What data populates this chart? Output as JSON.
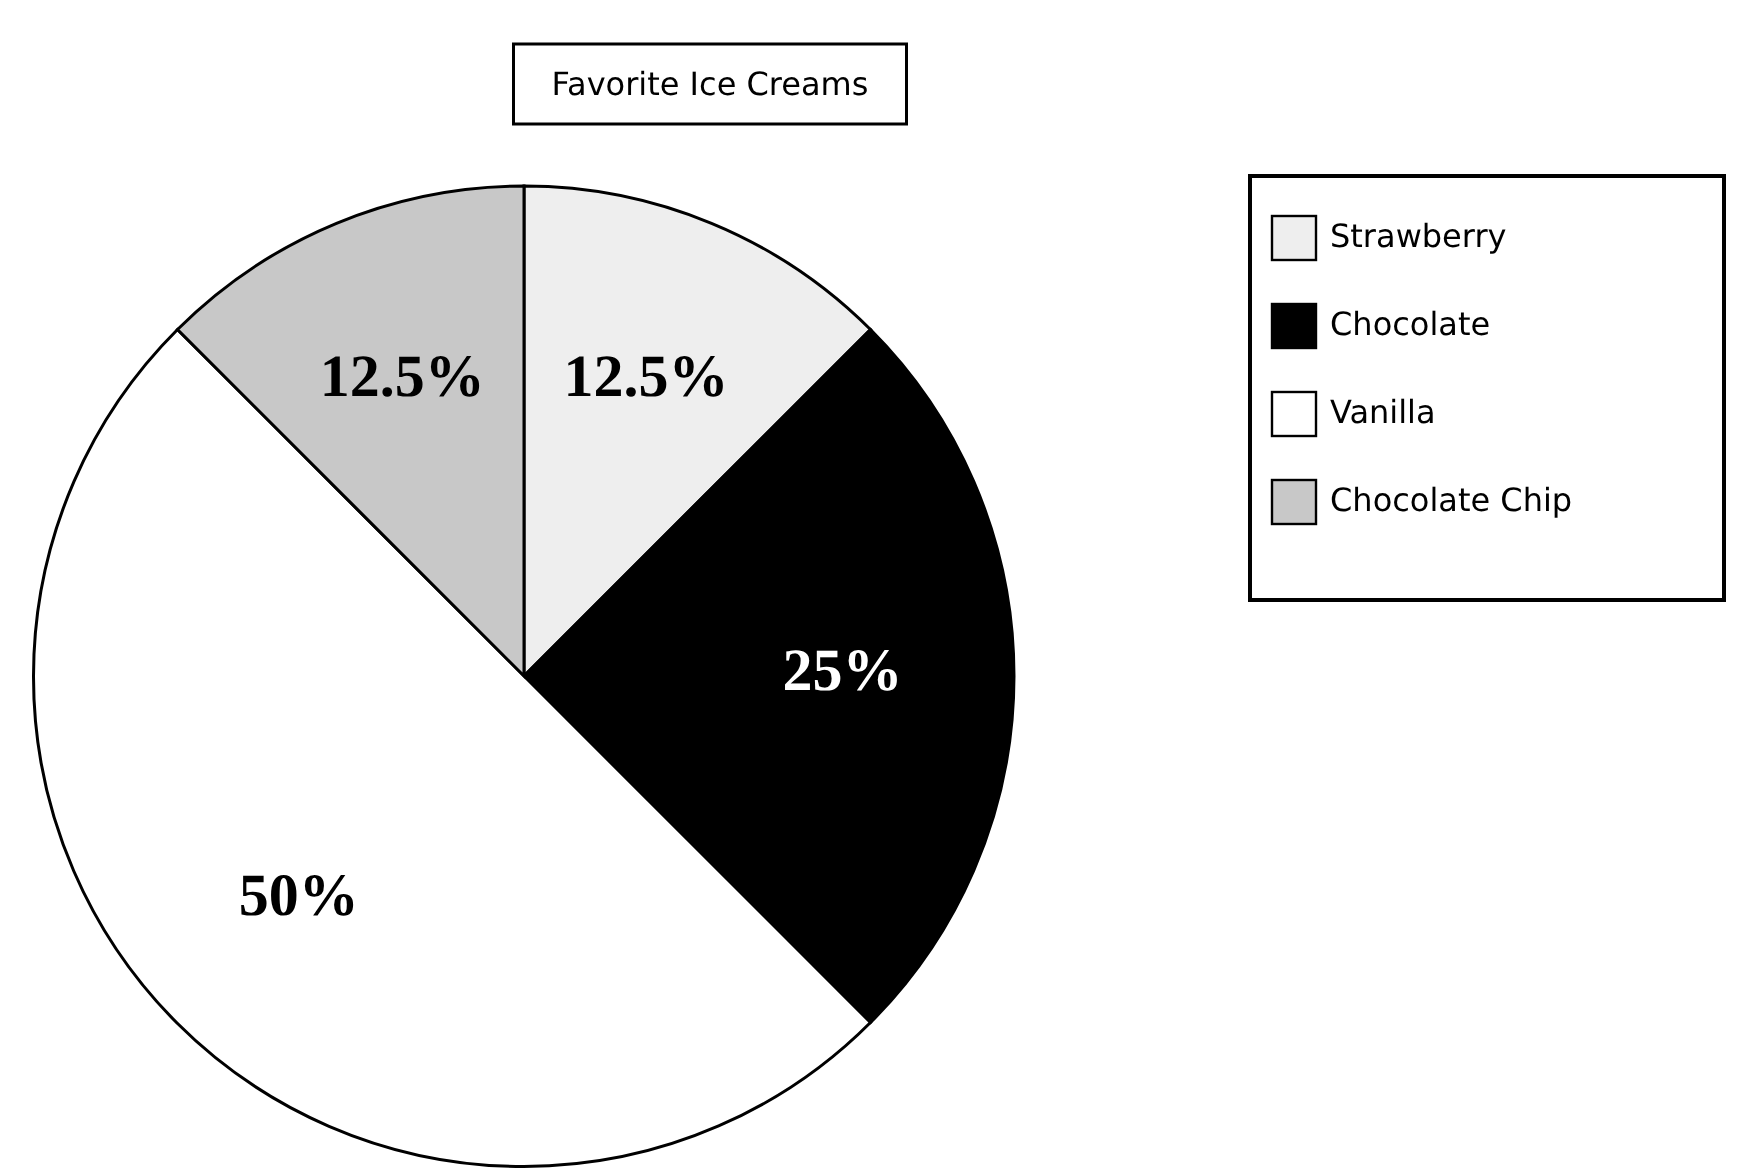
{
  "chart_data": {
    "type": "pie",
    "title": "Favorite Ice Creams",
    "categories": [
      "Strawberry",
      "Chocolate",
      "Vanilla",
      "Chocolate Chip"
    ],
    "values": [
      12.5,
      25,
      50,
      12.5
    ],
    "colors": [
      "#eeeeee",
      "#000000",
      "#ffffff",
      "#c8c8c8"
    ],
    "value_labels": [
      "12.5%",
      "25%",
      "50%",
      "12.5%"
    ],
    "legend": "top right"
  }
}
